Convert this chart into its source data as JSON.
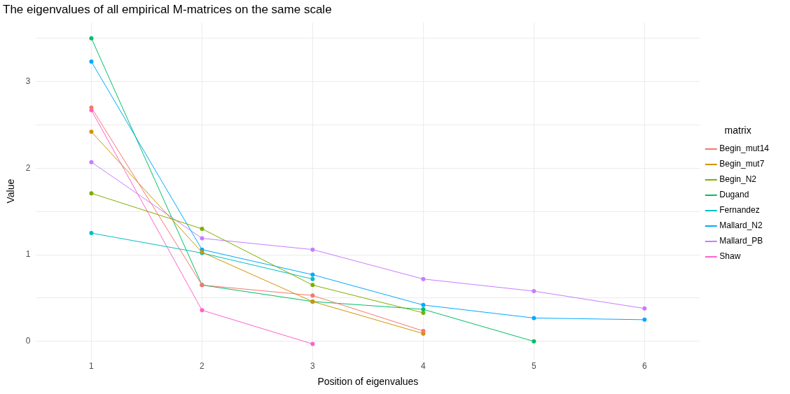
{
  "chart_data": {
    "type": "line",
    "title": "The eigenvalues of all empirical M-matrices on the same scale",
    "xlabel": "Position of eigenvalues",
    "ylabel": "Value",
    "legend_title": "matrix",
    "legend": "right",
    "grid": true,
    "marker": "circle",
    "line_style": "solid",
    "xlim": [
      0.5,
      6.5
    ],
    "xticks": [
      1,
      2,
      3,
      4,
      5,
      6
    ],
    "ylim": [
      -0.21,
      3.68
    ],
    "yticks": [
      0,
      {
        "value": 0.5,
        "label": null
      },
      1,
      {
        "value": 1.5,
        "label": null
      },
      2,
      {
        "value": 2.5,
        "label": null
      },
      3,
      {
        "value": 3.5,
        "label": null
      }
    ],
    "series": [
      {
        "name": "Begin_mut14",
        "color": "#f8766d",
        "x": [
          1,
          2,
          3,
          4
        ],
        "values": [
          2.7,
          0.65,
          0.53,
          0.12
        ]
      },
      {
        "name": "Begin_mut7",
        "color": "#cd9600",
        "x": [
          1,
          2,
          3,
          4
        ],
        "values": [
          2.42,
          1.03,
          0.46,
          0.09
        ]
      },
      {
        "name": "Begin_N2",
        "color": "#7cae00",
        "x": [
          1,
          2,
          3,
          4
        ],
        "values": [
          1.71,
          1.3,
          0.65,
          0.33
        ]
      },
      {
        "name": "Dugand",
        "color": "#00be67",
        "x": [
          1,
          2,
          3,
          4,
          5
        ],
        "values": [
          3.5,
          0.65,
          0.46,
          0.37,
          0.0
        ]
      },
      {
        "name": "Fernandez",
        "color": "#00bfc4",
        "x": [
          1,
          2,
          3
        ],
        "values": [
          1.25,
          1.02,
          0.72
        ]
      },
      {
        "name": "Mallard_N2",
        "color": "#00a9ff",
        "x": [
          1,
          2,
          3,
          4,
          5,
          6
        ],
        "values": [
          3.23,
          1.06,
          0.77,
          0.42,
          0.27,
          0.25
        ]
      },
      {
        "name": "Mallard_PB",
        "color": "#c77cff",
        "x": [
          1,
          2,
          3,
          4,
          5,
          6
        ],
        "values": [
          2.07,
          1.19,
          1.06,
          0.72,
          0.58,
          0.38
        ]
      },
      {
        "name": "Shaw",
        "color": "#ff61cc",
        "x": [
          1,
          2,
          3
        ],
        "values": [
          2.67,
          0.36,
          -0.03
        ]
      }
    ]
  }
}
